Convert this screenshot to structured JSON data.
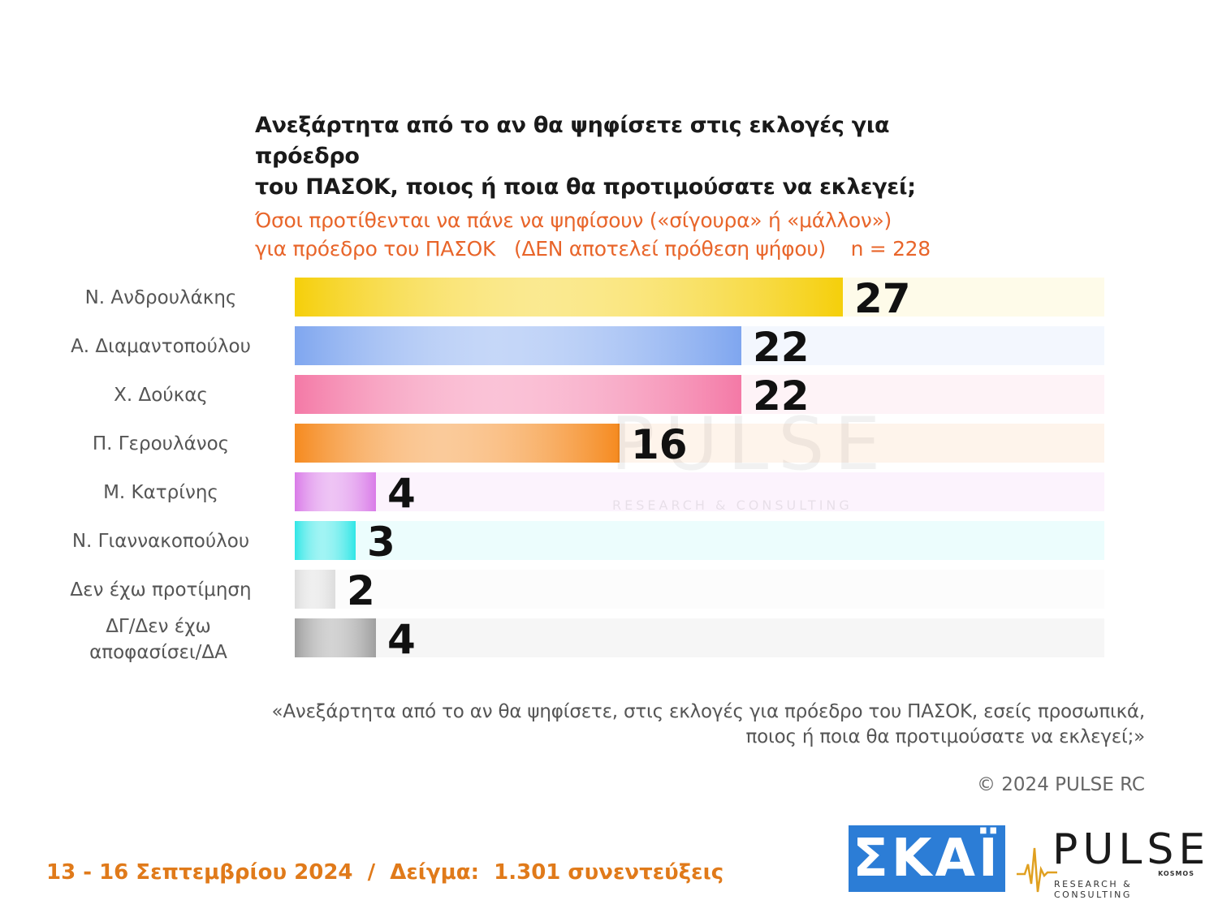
{
  "header": {
    "title_line1": "Ανεξάρτητα από το αν θα ψηφίσετε στις εκλογές για πρόεδρο",
    "title_line2": "του ΠΑΣΟΚ, ποιος ή ποια θα προτιμούσατε να εκλεγεί;",
    "subtitle_line1": "Όσοι προτίθενται να πάνε να ψηφίσουν («σίγουρα» ή «μάλλον»)",
    "subtitle_line2": "για πρόεδρο του ΠΑΣΟΚ   (ΔΕΝ αποτελεί πρόθεση ψήφου)    n = 228"
  },
  "chart_data": {
    "type": "bar",
    "orientation": "horizontal",
    "categories": [
      "Ν. Ανδρουλάκης",
      "Α. Διαμαντοπούλου",
      "Χ. Δούκας",
      "Π. Γερουλάνος",
      "Μ. Κατρίνης",
      "Ν. Γιαννακοπούλου",
      "Δεν έχω προτίμηση",
      "ΔΓ/Δεν έχω αποφασίσει/ΔΑ"
    ],
    "values": [
      27,
      22,
      22,
      16,
      4,
      3,
      2,
      4
    ],
    "colors": [
      "#f5cf0a",
      "#7fa6ef",
      "#f479a6",
      "#f58a1f",
      "#d97be8",
      "#2fe6e6",
      "#dcdcdc",
      "#9e9e9e"
    ],
    "xlim": [
      0,
      40
    ],
    "grid": false,
    "legend": "none"
  },
  "watermark": {
    "name": "PULSE",
    "sub": "RESEARCH & CONSULTING"
  },
  "note": {
    "line1": "«Ανεξάρτητα από το αν θα ψηφίσετε, στις εκλογές για πρόεδρο του ΠΑΣΟΚ, εσείς προσωπικά,",
    "line2": "ποιος ή ποια θα προτιμούσατε να εκλεγεί;»"
  },
  "copyright": "© 2024 PULSE RC",
  "footer": "13 - 16 Σεπτεμβρίου 2024  /  Δείγμα:  1.301 συνεντεύξεις",
  "logos": {
    "skai": "ΣΚΑΪ",
    "pulse": "PULSE",
    "pulse_kosmos": "KOSMOS",
    "pulse_sub": "RESEARCH & CONSULTING"
  }
}
